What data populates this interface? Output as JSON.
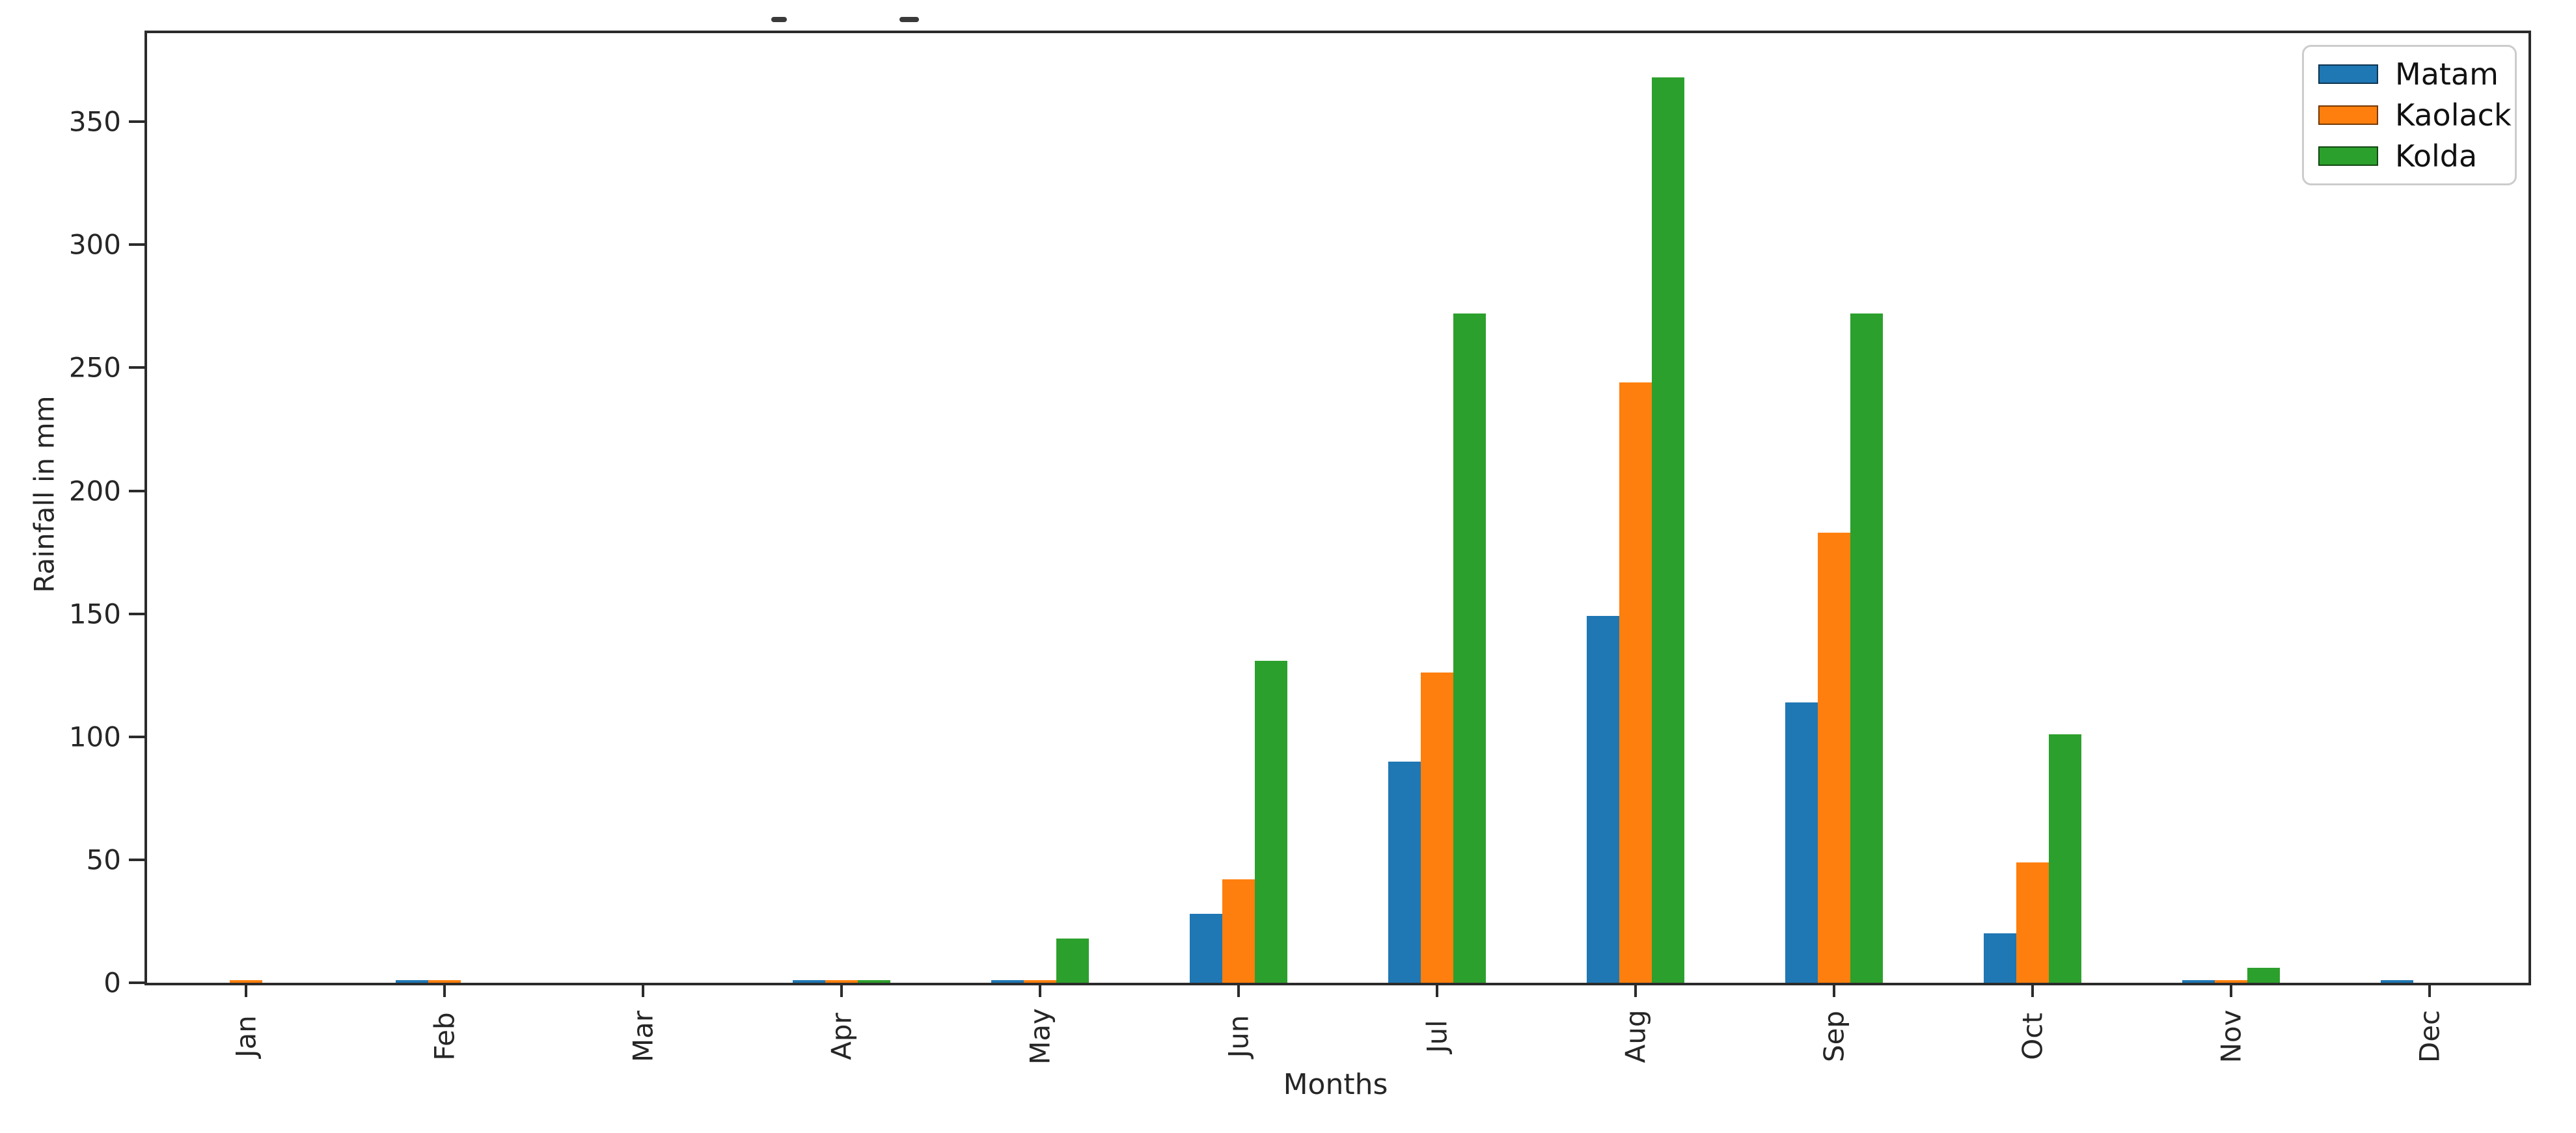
{
  "figure": {
    "ylabel": "Rainfall in mm",
    "xlabel": "Months"
  },
  "chart_data": {
    "type": "bar",
    "title": "",
    "categories": [
      "Jan",
      "Feb",
      "Mar",
      "Apr",
      "May",
      "Jun",
      "Jul",
      "Aug",
      "Sep",
      "Oct",
      "Nov",
      "Dec"
    ],
    "series": [
      {
        "name": "Matam",
        "color": "#1f77b4",
        "values": [
          0,
          1,
          0,
          1,
          1,
          28,
          90,
          149,
          114,
          20,
          1,
          1
        ]
      },
      {
        "name": "Kaolack",
        "color": "#ff7f0e",
        "values": [
          1,
          1,
          0,
          1,
          1,
          42,
          126,
          244,
          183,
          49,
          1,
          0
        ]
      },
      {
        "name": "Kolda",
        "color": "#2ca02c",
        "values": [
          0,
          0,
          0,
          1,
          18,
          131,
          272,
          368,
          272,
          101,
          6,
          0
        ]
      }
    ],
    "xlabel": "Months",
    "ylabel": "Rainfall in mm",
    "ylim": [
      0,
      386
    ],
    "yticks": [
      0,
      50,
      100,
      150,
      200,
      250,
      300,
      350
    ],
    "grid": false,
    "legend_position": "upper right"
  },
  "colors": {
    "spine": "#2b2b2b",
    "tick_text": "#262626",
    "legend_border": "#cccccc",
    "background": "#ffffff"
  }
}
